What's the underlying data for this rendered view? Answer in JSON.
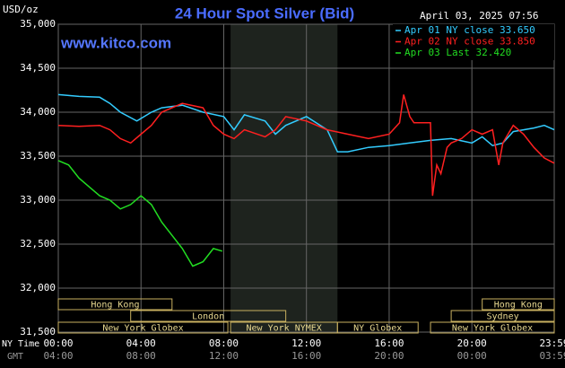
{
  "chart_data": {
    "type": "line",
    "title": "24 Hour Spot Silver (Bid)",
    "y_label": "USD/oz",
    "date": "April 03, 2025 07:56",
    "source": "www.kitco.com",
    "x_label": "NY Time",
    "x2_label": "GMT",
    "xlim": [
      0,
      23.983
    ],
    "xticks": [
      {
        "value": 0,
        "label": "00:00"
      },
      {
        "value": 4,
        "label": "04:00"
      },
      {
        "value": 8,
        "label": "08:00"
      },
      {
        "value": 12,
        "label": "12:00"
      },
      {
        "value": 16,
        "label": "16:00"
      },
      {
        "value": 20,
        "label": "20:00"
      },
      {
        "value": 23.983,
        "label": "23:59"
      }
    ],
    "x2ticks": [
      {
        "value": 0,
        "label": "04:00"
      },
      {
        "value": 4,
        "label": "08:00"
      },
      {
        "value": 8,
        "label": "12:00"
      },
      {
        "value": 12,
        "label": "16:00"
      },
      {
        "value": 16,
        "label": "20:00"
      },
      {
        "value": 20,
        "label": "00:00"
      },
      {
        "value": 23.983,
        "label": "03:59"
      }
    ],
    "ylim": [
      31.5,
      35
    ],
    "yticks": [
      {
        "value": 35,
        "label": "35,000"
      },
      {
        "value": 34.5,
        "label": "34,500"
      },
      {
        "value": 34,
        "label": "34,000"
      },
      {
        "value": 33.5,
        "label": "33,500"
      },
      {
        "value": 33,
        "label": "33,000"
      },
      {
        "value": 32.5,
        "label": "32,500"
      },
      {
        "value": 32,
        "label": "32,000"
      },
      {
        "value": 31.5,
        "label": "31,500"
      }
    ],
    "grid": true,
    "series": [
      {
        "name": "Apr 01 NY close 33.650",
        "color": "#33ccff",
        "x": [
          0,
          1,
          2,
          2.5,
          3,
          3.8,
          4.5,
          5,
          6,
          7,
          8,
          8.5,
          9,
          10,
          10.5,
          11,
          12,
          13,
          13.5,
          14,
          15,
          16,
          17,
          18,
          19,
          20,
          20.5,
          21,
          21.5,
          22,
          23,
          23.5,
          23.983
        ],
        "values": [
          34.2,
          34.18,
          34.17,
          34.1,
          34.0,
          33.9,
          34.0,
          34.05,
          34.08,
          34.0,
          33.95,
          33.8,
          33.97,
          33.9,
          33.75,
          33.85,
          33.95,
          33.8,
          33.55,
          33.55,
          33.6,
          33.62,
          33.65,
          33.68,
          33.7,
          33.65,
          33.72,
          33.62,
          33.65,
          33.78,
          33.82,
          33.85,
          33.8
        ]
      },
      {
        "name": "Apr 02 NY close 33.850",
        "color": "#ff2020",
        "x": [
          0,
          1,
          2,
          2.5,
          3,
          3.5,
          4,
          4.5,
          5,
          6,
          7,
          7.5,
          8,
          8.5,
          9,
          10,
          10.5,
          11,
          12,
          13,
          14,
          15,
          16,
          16.5,
          16.7,
          17,
          17.2,
          18,
          18.1,
          18.3,
          18.5,
          18.8,
          19,
          19.5,
          20,
          20.5,
          21,
          21.3,
          21.5,
          22,
          22.5,
          23,
          23.5,
          23.983
        ],
        "values": [
          33.85,
          33.84,
          33.85,
          33.8,
          33.7,
          33.65,
          33.75,
          33.85,
          34.0,
          34.1,
          34.05,
          33.85,
          33.75,
          33.7,
          33.8,
          33.72,
          33.8,
          33.95,
          33.9,
          33.8,
          33.75,
          33.7,
          33.75,
          33.88,
          34.2,
          33.95,
          33.88,
          33.88,
          33.05,
          33.4,
          33.3,
          33.6,
          33.65,
          33.7,
          33.8,
          33.75,
          33.8,
          33.4,
          33.65,
          33.85,
          33.75,
          33.6,
          33.48,
          33.42
        ]
      },
      {
        "name": "Apr 03 Last 32.420",
        "color": "#22dd22",
        "x": [
          0,
          0.5,
          1,
          1.5,
          2,
          2.5,
          3,
          3.5,
          4,
          4.5,
          5,
          5.5,
          6,
          6.5,
          7,
          7.5,
          7.93
        ],
        "values": [
          33.45,
          33.4,
          33.25,
          33.15,
          33.05,
          33.0,
          32.9,
          32.95,
          33.05,
          32.95,
          32.75,
          32.6,
          32.45,
          32.25,
          32.3,
          32.45,
          32.42
        ]
      }
    ],
    "sessions": [
      [
        {
          "label": "Hong Kong",
          "start": 0,
          "end": 5.5
        },
        {
          "label": "Hong Kong",
          "start": 20.5,
          "end": 23.983
        }
      ],
      [
        {
          "label": "London",
          "start": 3.5,
          "end": 11
        },
        {
          "label": "Sydney",
          "start": 19,
          "end": 23.983
        }
      ],
      [
        {
          "label": "New York Globex",
          "start": 0,
          "end": 8.2
        },
        {
          "label": "New York NYMEX",
          "start": 8.33,
          "end": 13.5,
          "highlight": true
        },
        {
          "label": "NY Globex",
          "start": 13.5,
          "end": 17.4
        },
        {
          "label": "New York Globex",
          "start": 18,
          "end": 23.983
        }
      ]
    ]
  }
}
